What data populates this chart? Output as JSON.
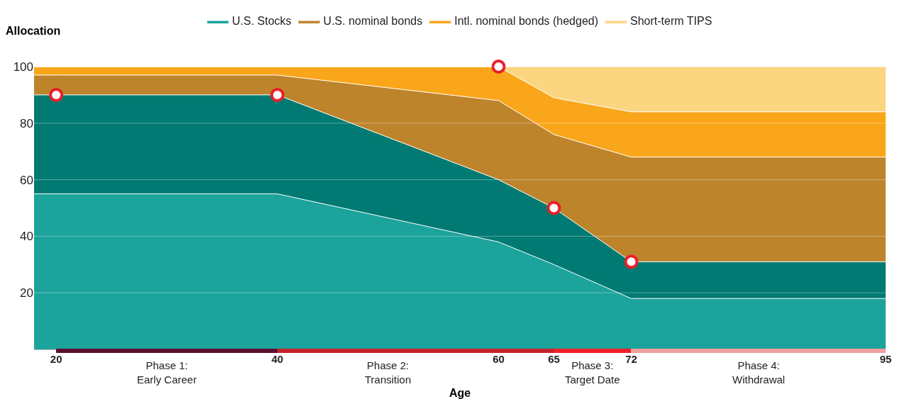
{
  "chart_data": {
    "type": "area",
    "stacked": true,
    "ylabel": "Allocation",
    "xlabel": "Age",
    "x": [
      18,
      20,
      40,
      60,
      65,
      72,
      95
    ],
    "xlim": [
      18,
      95
    ],
    "xticks": [
      20,
      40,
      60,
      65,
      72,
      95
    ],
    "ylim": [
      0,
      100
    ],
    "yticks": [
      20,
      40,
      60,
      80,
      100
    ],
    "series": [
      {
        "name": "U.S. Stocks",
        "color": "#1ba39c",
        "values": [
          55,
          55,
          55,
          38,
          30,
          18,
          18
        ]
      },
      {
        "color": "#007a72",
        "values": [
          35,
          35,
          35,
          22,
          20,
          13,
          13
        ]
      },
      {
        "name": "U.S. nominal bonds",
        "color": "#bd842c",
        "values": [
          7,
          7,
          7,
          28,
          26,
          37,
          37
        ]
      },
      {
        "name": "Intl. nominal bonds (hedged)",
        "color": "#faa61a",
        "values": [
          3,
          3,
          3,
          12,
          13,
          16,
          16
        ]
      },
      {
        "name": "Short-term TIPS",
        "color": "#fcd581",
        "values": [
          0,
          0,
          0,
          0,
          11,
          16,
          16
        ]
      },
      {
        "type": "scatter",
        "marker": "circle",
        "color": "#e8202a",
        "x": [
          20,
          40,
          60,
          65,
          72
        ],
        "values": [
          90,
          90,
          100,
          50,
          31
        ]
      }
    ],
    "annotations": [
      "Phase 1:\nEarly Career",
      "Phase 2:\nTransition",
      "Phase 3:\nTarget Date",
      "Phase 4:\nWithdrawal"
    ],
    "grid": "y",
    "legend": "top"
  }
}
